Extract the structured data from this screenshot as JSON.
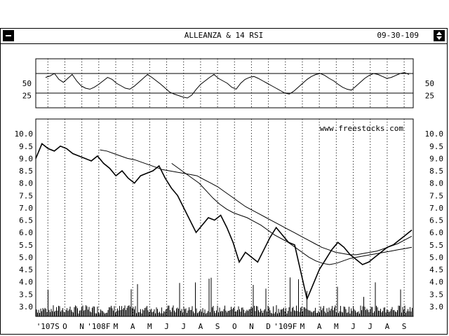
{
  "window": {
    "title": "ALLEANZA & 14 RSI",
    "date": "09-30-109",
    "close_icon": "minus-icon",
    "scroll_icon": "up-down-arrows-icon"
  },
  "watermark": "www.freestocks.com",
  "chart_data": [
    {
      "type": "line",
      "title": "",
      "series": [
        {
          "values": [
            62,
            65,
            70,
            58,
            52,
            60,
            68,
            55,
            45,
            40,
            38,
            42,
            48,
            55,
            62,
            58,
            50,
            45,
            40,
            38,
            44,
            52,
            60,
            68,
            62,
            55,
            48,
            40,
            32,
            28,
            25,
            22,
            20,
            26,
            38,
            48,
            55,
            62,
            68,
            60,
            55,
            50,
            42,
            38,
            50,
            58,
            62,
            64,
            60,
            55,
            50,
            45,
            40,
            35,
            30,
            28,
            34,
            42,
            50,
            58,
            64,
            68,
            70,
            66,
            60,
            55,
            48,
            42,
            38,
            36,
            44,
            52,
            60,
            66,
            70,
            68,
            64,
            60,
            62,
            66,
            70,
            72,
            68
          ]
        }
      ],
      "ylim": [
        0,
        100
      ],
      "y_ticks": [
        "50",
        "25"
      ],
      "reference_lines": [
        70,
        30
      ]
    },
    {
      "type": "line",
      "title": "",
      "x_tick_labels": [
        "'107S",
        "O",
        "N",
        "'108F",
        "M",
        "A",
        "M",
        "J",
        "J",
        "A",
        "S",
        "O",
        "N",
        "D",
        "'109F",
        "M",
        "A",
        "M",
        "J",
        "J",
        "A",
        "S"
      ],
      "y_ticks": [
        "10.0",
        "9.5",
        "9.0",
        "8.5",
        "8.0",
        "7.5",
        "7.0",
        "6.5",
        "6.0",
        "5.5",
        "5.0",
        "4.5",
        "4.0",
        "3.5",
        "3.0"
      ],
      "ylim": [
        2.6,
        10.6
      ],
      "series": [
        {
          "values": [
            9.0,
            9.6,
            9.4,
            9.3,
            9.5,
            9.4,
            9.2,
            9.1,
            9.0,
            8.9,
            9.1,
            8.8,
            8.6,
            8.3,
            8.5,
            8.2,
            8.0,
            8.3,
            8.4,
            8.5,
            8.7,
            8.2,
            7.8,
            7.5,
            7.0,
            6.5,
            6.0,
            6.3,
            6.6,
            6.5,
            6.7,
            6.2,
            5.6,
            4.8,
            5.2,
            5.0,
            4.8,
            5.3,
            5.8,
            6.2,
            5.9,
            5.6,
            5.5,
            4.4,
            3.3,
            3.9,
            4.5,
            4.9,
            5.3,
            5.6,
            5.4,
            5.1,
            4.9,
            4.7,
            4.8,
            5.0,
            5.2,
            5.4,
            5.5,
            5.7,
            5.9,
            6.1
          ]
        },
        {
          "values": [
            9.35,
            9.3,
            9.2,
            9.1,
            9.0,
            8.95,
            8.85,
            8.75,
            8.65,
            8.55,
            8.5,
            8.45,
            8.4,
            8.35,
            8.3,
            8.15,
            8.0,
            7.85,
            7.65,
            7.45,
            7.25,
            7.05,
            6.9,
            6.75,
            6.6,
            6.45,
            6.3,
            6.15,
            6.0,
            5.85,
            5.7,
            5.55,
            5.4,
            5.3,
            5.2,
            5.15,
            5.1,
            5.1,
            5.15,
            5.2,
            5.25,
            5.35,
            5.45,
            5.55,
            5.7,
            5.85
          ]
        },
        {
          "values": [
            8.8,
            8.6,
            8.4,
            8.2,
            8.0,
            7.7,
            7.4,
            7.15,
            6.95,
            6.8,
            6.7,
            6.6,
            6.45,
            6.3,
            6.1,
            5.9,
            5.75,
            5.6,
            5.4,
            5.2,
            5.0,
            4.85,
            4.75,
            4.7,
            4.75,
            4.85,
            4.95,
            5.0,
            5.05,
            5.1,
            5.15,
            5.2,
            5.25,
            5.3,
            5.35,
            5.4
          ]
        }
      ]
    }
  ]
}
